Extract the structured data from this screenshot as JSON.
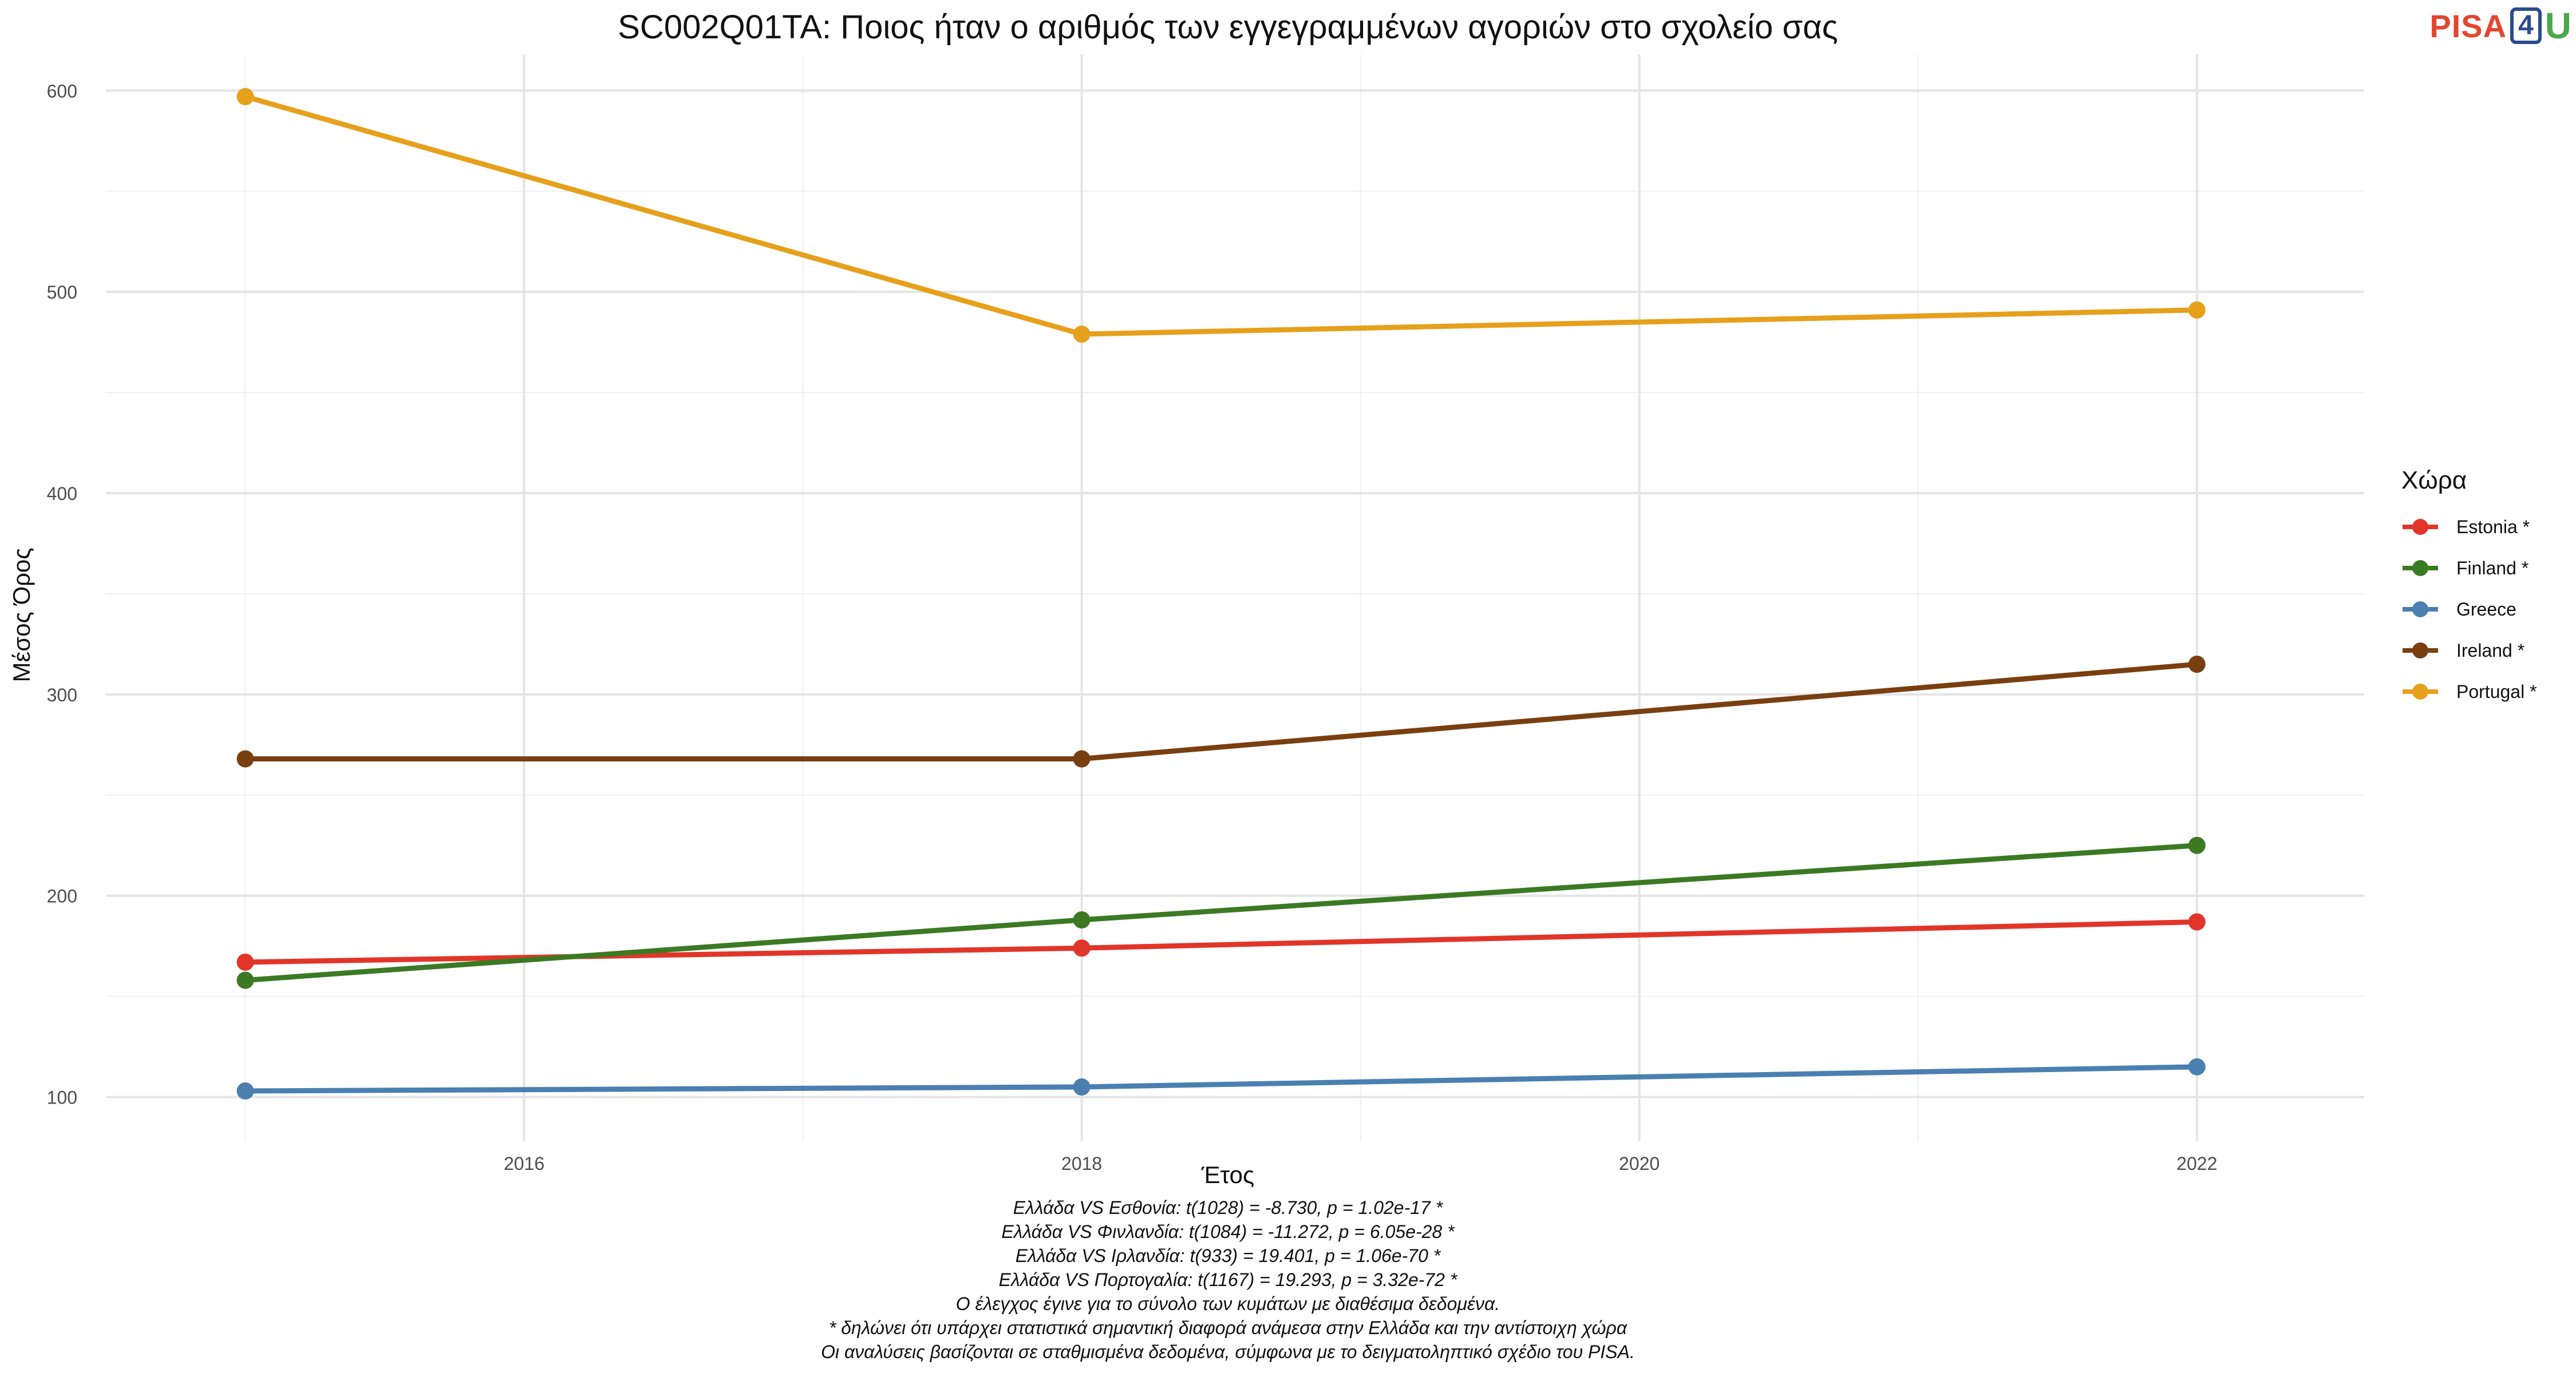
{
  "chart_data": {
    "type": "line",
    "title": "SC002Q01TA: Ποιος ήταν ο αριθμός των εγγεγραμμένων αγοριών στο σχολείο σας",
    "xlabel": "Έτος",
    "ylabel": "Μέσος Όρος",
    "x": [
      2015,
      2018,
      2022
    ],
    "xlim": [
      2014.5,
      2022.6
    ],
    "ylim": [
      78,
      618
    ],
    "xticks": [
      2016,
      2018,
      2020,
      2022
    ],
    "yticks": [
      100,
      200,
      300,
      400,
      500,
      600
    ],
    "grid": true,
    "legend_title": "Χώρα",
    "legend_position": "right",
    "series": [
      {
        "name": "Estonia *",
        "color": "#e2352a",
        "values": [
          167,
          174,
          187
        ]
      },
      {
        "name": "Finland *",
        "color": "#3b7a23",
        "values": [
          158,
          188,
          225
        ]
      },
      {
        "name": "Greece",
        "color": "#4a7fb0",
        "values": [
          103,
          105,
          115
        ]
      },
      {
        "name": "Ireland *",
        "color": "#7a3f10",
        "values": [
          268,
          268,
          315
        ]
      },
      {
        "name": "Portugal *",
        "color": "#e6a01b",
        "values": [
          597,
          479,
          491
        ]
      }
    ]
  },
  "logo": {
    "pisa": "PISA",
    "four": "4",
    "u": "U"
  },
  "footnotes": [
    "Ελλάδα VS Εσθονία: t(1028) = -8.730, p = 1.02e-17 *",
    "Ελλάδα VS Φινλανδία: t(1084) = -11.272, p = 6.05e-28 *",
    "Ελλάδα VS Ιρλανδία: t(933) = 19.401, p = 1.06e-70 *",
    "Ελλάδα VS Πορτογαλία: t(1167) = 19.293, p = 3.32e-72 *",
    "Ο έλεγχος έγινε για το σύνολο των κυμάτων με διαθέσιμα δεδομένα.",
    "* δηλώνει ότι υπάρχει στατιστικά σημαντική διαφορά ανάμεσα στην Ελλάδα και την αντίστοιχη χώρα",
    "Οι αναλύσεις βασίζονται σε σταθμισμένα δεδομένα, σύμφωνα με το δειγματοληπτικό σχέδιο του PISA."
  ]
}
